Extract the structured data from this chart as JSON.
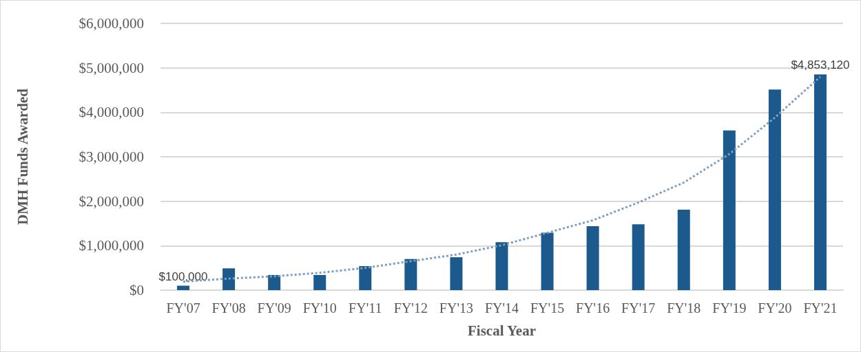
{
  "chart_data": {
    "type": "bar",
    "xlabel": "Fiscal Year",
    "ylabel": "DMH Funds Awarded",
    "categories": [
      "FY'07",
      "FY'08",
      "FY'09",
      "FY'10",
      "FY'11",
      "FY'12",
      "FY'13",
      "FY'14",
      "FY'15",
      "FY'16",
      "FY'17",
      "FY'18",
      "FY'19",
      "FY'20",
      "FY'21"
    ],
    "series": [
      {
        "color": "#1c5a8e",
        "values": [
          100000,
          490000,
          340000,
          340000,
          540000,
          700000,
          740000,
          1080000,
          1290000,
          1440000,
          1480000,
          1810000,
          3590000,
          4510000,
          4853120
        ],
        "value_labels": [
          "$100,000",
          null,
          null,
          null,
          null,
          null,
          null,
          null,
          null,
          null,
          null,
          null,
          null,
          null,
          "$4,853,120"
        ]
      },
      {
        "type": "line",
        "color": "#7f9fbf",
        "line_style": "dotted",
        "marker": "none",
        "values": [
          190000,
          260000,
          310000,
          390000,
          500000,
          650000,
          800000,
          1010000,
          1290000,
          1570000,
          1970000,
          2420000,
          3060000,
          3880000,
          4800000
        ]
      }
    ],
    "ylim": [
      0,
      6000000
    ],
    "yticks": [
      {
        "value": 0,
        "label": "$0"
      },
      {
        "value": 1000000,
        "label": "$1,000,000"
      },
      {
        "value": 2000000,
        "label": "$2,000,000"
      },
      {
        "value": 3000000,
        "label": "$3,000,000"
      },
      {
        "value": 4000000,
        "label": "$4,000,000"
      },
      {
        "value": 5000000,
        "label": "$5,000,000"
      },
      {
        "value": 6000000,
        "label": "$6,000,000"
      }
    ],
    "grid": "y"
  }
}
